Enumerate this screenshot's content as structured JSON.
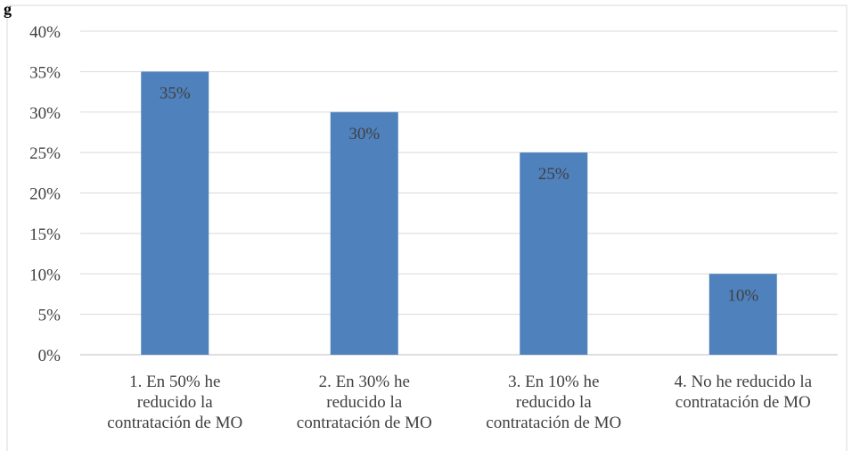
{
  "corner_text": "g",
  "colors": {
    "bar": "#4F81BD",
    "grid": "#D9D9D9",
    "axis": "#BFBFBF",
    "text": "#404040",
    "frame": "#D9D9D9"
  },
  "chart_data": {
    "type": "bar",
    "categories": [
      [
        "1. En 50% he",
        "reducido la",
        "contratación de MO"
      ],
      [
        "2. En 30% he",
        "reducido la",
        "contratación de MO"
      ],
      [
        "3. En 10% he",
        "reducido la",
        "contratación de MO"
      ],
      [
        "4. No he reducido la",
        "contratación de MO"
      ]
    ],
    "values": [
      35,
      30,
      25,
      10
    ],
    "data_labels": [
      "35%",
      "30%",
      "25%",
      "10%"
    ],
    "ylim": [
      0,
      40
    ],
    "yticks": [
      0,
      5,
      10,
      15,
      20,
      25,
      30,
      35,
      40
    ],
    "ytick_labels": [
      "0%",
      "5%",
      "10%",
      "15%",
      "20%",
      "25%",
      "30%",
      "35%",
      "40%"
    ],
    "grid": true,
    "legend": "none"
  }
}
